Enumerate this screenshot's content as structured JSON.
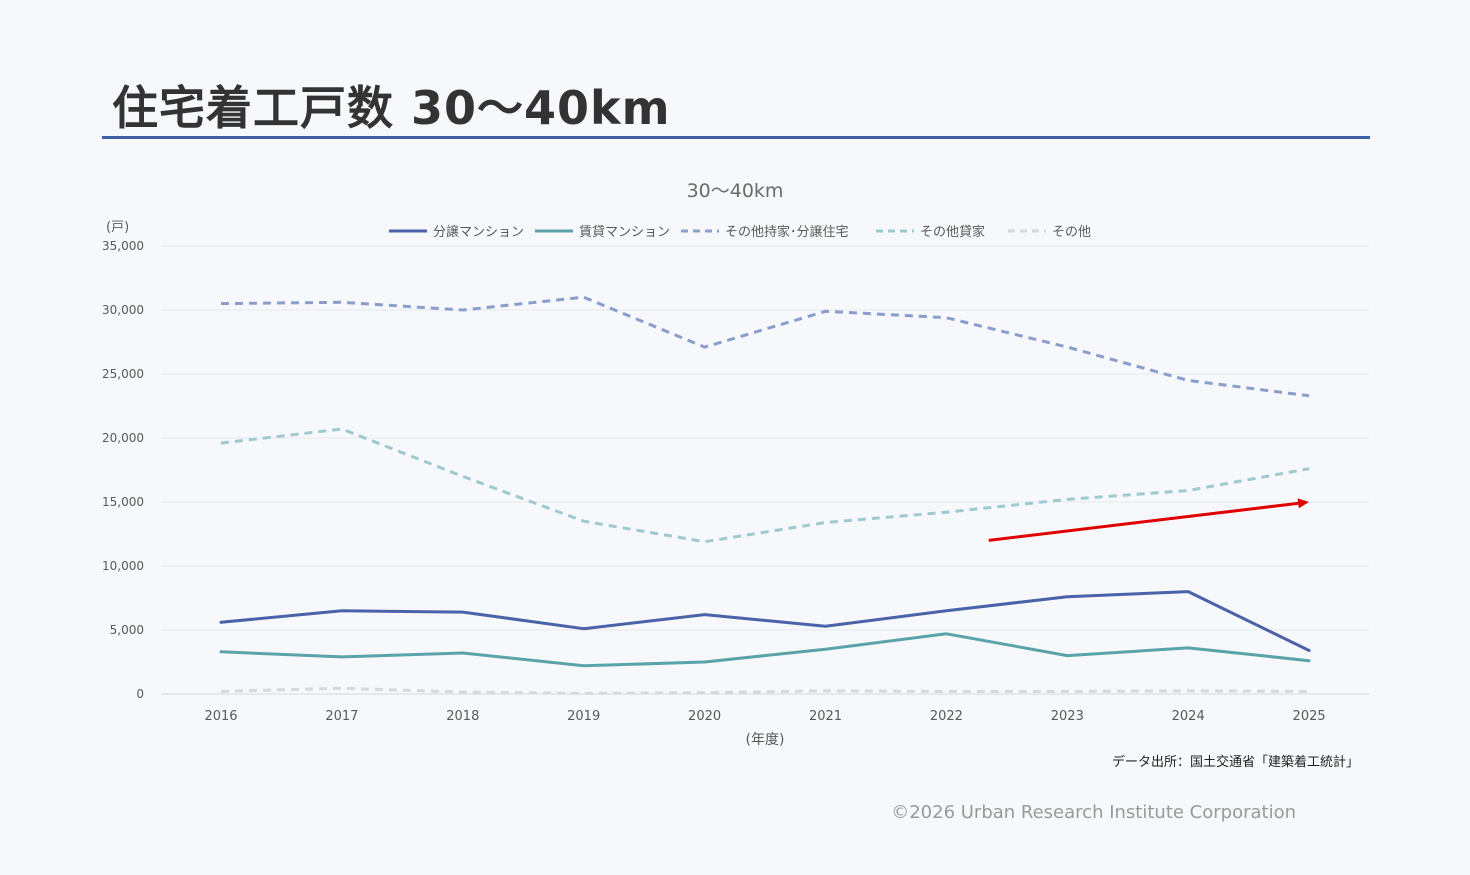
{
  "header": {
    "title": "住宅着工戸数 30～40km"
  },
  "footer": {
    "source": "データ出所：国土交通省「建築着工統計」",
    "copyright": "©2026 Urban Research Institute Corporation"
  },
  "chart_data": {
    "type": "line",
    "title": "30～40km",
    "xlabel": "(年度)",
    "ylabel": "(戸)",
    "categories": [
      "2016",
      "2017",
      "2018",
      "2019",
      "2020",
      "2021",
      "2022",
      "2023",
      "2024",
      "2025"
    ],
    "ylim": [
      0,
      35000
    ],
    "yticks": [
      0,
      5000,
      10000,
      15000,
      20000,
      25000,
      30000,
      35000
    ],
    "ytick_labels": [
      "0",
      "5,000",
      "10,000",
      "15,000",
      "20,000",
      "25,000",
      "30,000",
      "35,000"
    ],
    "grid": true,
    "legend_position": "top",
    "series": [
      {
        "name": "分譲マンション",
        "color": "#4a62a8",
        "dashed": false,
        "values": [
          5600,
          6500,
          6400,
          5100,
          6200,
          5300,
          6500,
          7600,
          8000,
          3400
        ]
      },
      {
        "name": "賃貸マンション",
        "color": "#5ba3ab",
        "dashed": false,
        "values": [
          3300,
          2900,
          3200,
          2200,
          2500,
          3500,
          4700,
          3000,
          3600,
          2600
        ]
      },
      {
        "name": "その他持家･分譲住宅",
        "color": "#8b9dcb",
        "dashed": true,
        "values": [
          30500,
          30600,
          30000,
          31000,
          27100,
          29900,
          29400,
          27100,
          24500,
          23300
        ]
      },
      {
        "name": "その他貸家",
        "color": "#9ec9cf",
        "dashed": true,
        "values": [
          19600,
          20700,
          17000,
          13500,
          11900,
          13400,
          14200,
          15200,
          15900,
          17600
        ]
      },
      {
        "name": "その他",
        "color": "#d6d8dc",
        "dashed": true,
        "values": [
          200,
          450,
          150,
          50,
          100,
          250,
          200,
          200,
          250,
          200
        ]
      }
    ],
    "annotations": [
      {
        "type": "arrow",
        "color": "#e00000",
        "from": {
          "x": 2022.35,
          "y": 12000
        },
        "to": {
          "x": 2025,
          "y": 15000
        }
      }
    ]
  }
}
